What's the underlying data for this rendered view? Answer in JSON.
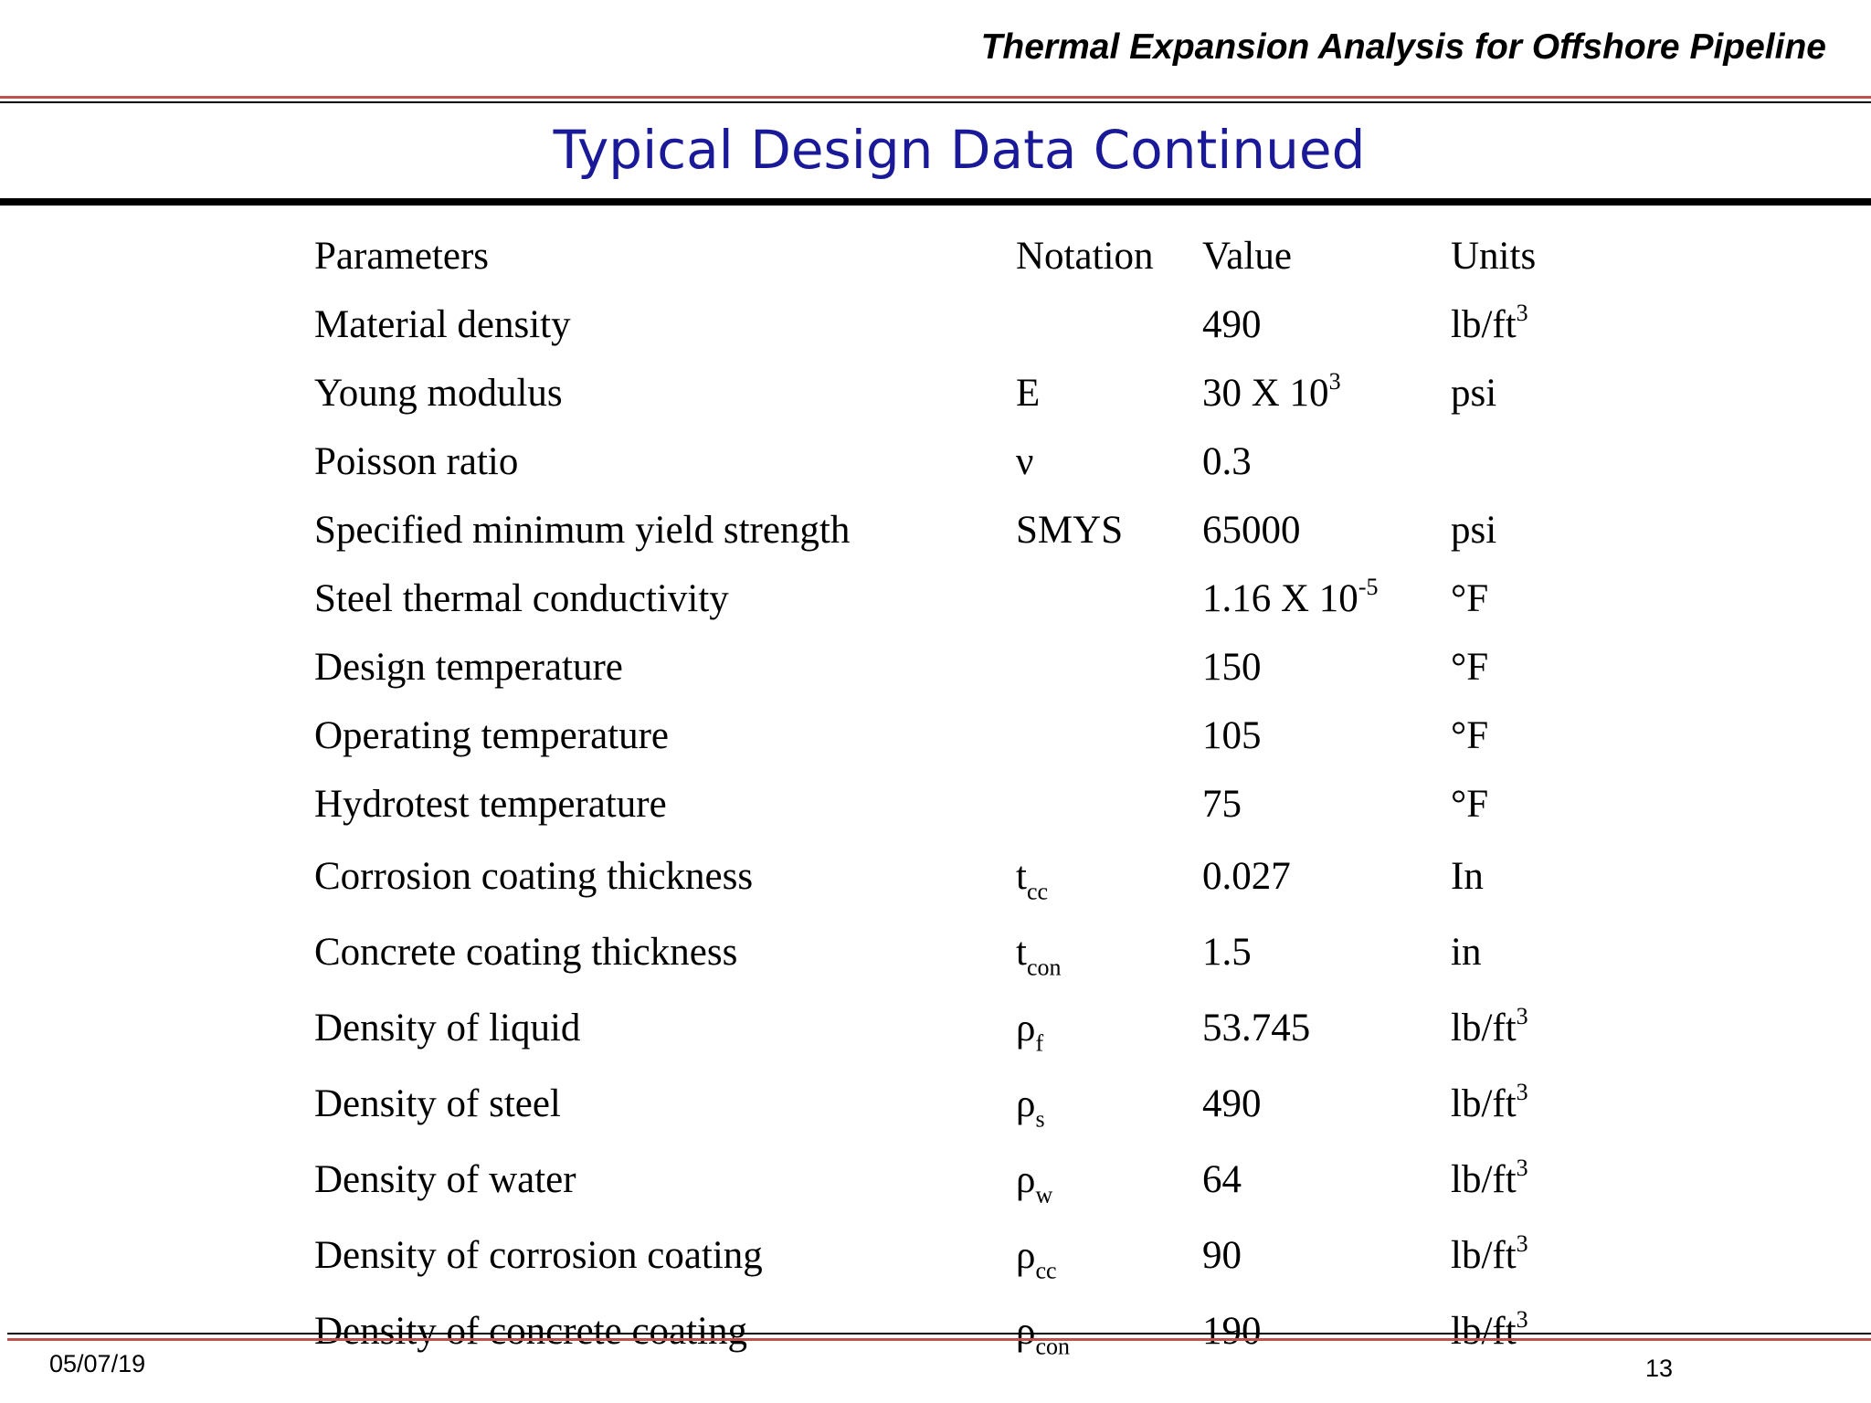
{
  "header": {
    "title": "Thermal Expansion Analysis for Offshore Pipeline"
  },
  "slide": {
    "title": "Typical Design Data Continued"
  },
  "table": {
    "columns": [
      "Parameters",
      "Notation",
      "Value",
      "Units"
    ],
    "rows": [
      {
        "parameter": "Material density",
        "notation": "",
        "notation_sub": "",
        "value": "490",
        "value_sup": "",
        "unit": "lb/ft",
        "unit_sup": "3"
      },
      {
        "parameter": "Young modulus",
        "notation": "E",
        "notation_sub": "",
        "value": "30 X 10",
        "value_sup": "3",
        "unit": "psi",
        "unit_sup": ""
      },
      {
        "parameter": "Poisson ratio",
        "notation": "ν",
        "notation_sub": "",
        "value": "0.3",
        "value_sup": "",
        "unit": "",
        "unit_sup": ""
      },
      {
        "parameter": "Specified minimum yield strength",
        "notation": "SMYS",
        "notation_sub": "",
        "value": "65000",
        "value_sup": "",
        "unit": "psi",
        "unit_sup": ""
      },
      {
        "parameter": "Steel thermal conductivity",
        "notation": "",
        "notation_sub": "",
        "value": "1.16 X 10",
        "value_sup": "-5",
        "unit": "°F",
        "unit_sup": ""
      },
      {
        "parameter": "Design temperature",
        "notation": "",
        "notation_sub": "",
        "value": "150",
        "value_sup": "",
        "unit": "°F",
        "unit_sup": ""
      },
      {
        "parameter": "Operating temperature",
        "notation": "",
        "notation_sub": "",
        "value": "105",
        "value_sup": "",
        "unit": "°F",
        "unit_sup": ""
      },
      {
        "parameter": "Hydrotest temperature",
        "notation": "",
        "notation_sub": "",
        "value": "75",
        "value_sup": "",
        "unit": "°F",
        "unit_sup": ""
      },
      {
        "parameter": "Corrosion coating thickness",
        "notation": "t",
        "notation_sub": "cc",
        "value": "0.027",
        "value_sup": "",
        "unit": "In",
        "unit_sup": ""
      },
      {
        "parameter": "Concrete coating thickness",
        "notation": "t",
        "notation_sub": "con",
        "value": "1.5",
        "value_sup": "",
        "unit": "in",
        "unit_sup": ""
      },
      {
        "parameter": "Density of liquid",
        "notation": "ρ",
        "notation_sub": "f",
        "value": "53.745",
        "value_sup": "",
        "unit": "lb/ft",
        "unit_sup": "3"
      },
      {
        "parameter": "Density of steel",
        "notation": "ρ",
        "notation_sub": "s",
        "value": "490",
        "value_sup": "",
        "unit": "lb/ft",
        "unit_sup": "3"
      },
      {
        "parameter": "Density of water",
        "notation": "ρ",
        "notation_sub": "w",
        "value": "64",
        "value_sup": "",
        "unit": "lb/ft",
        "unit_sup": "3"
      },
      {
        "parameter": "Density of corrosion coating",
        "notation": "ρ",
        "notation_sub": "cc",
        "value": "90",
        "value_sup": "",
        "unit": "lb/ft",
        "unit_sup": "3"
      },
      {
        "parameter": "Density of concrete coating",
        "notation": "ρ",
        "notation_sub": "con",
        "value": "190",
        "value_sup": "",
        "unit": "lb/ft",
        "unit_sup": "3"
      }
    ]
  },
  "footer": {
    "date": "05/07/19",
    "page": "13"
  },
  "colors": {
    "title": "#1a1a99",
    "rule_red": "#c0504d",
    "rule_black": "#000000"
  }
}
